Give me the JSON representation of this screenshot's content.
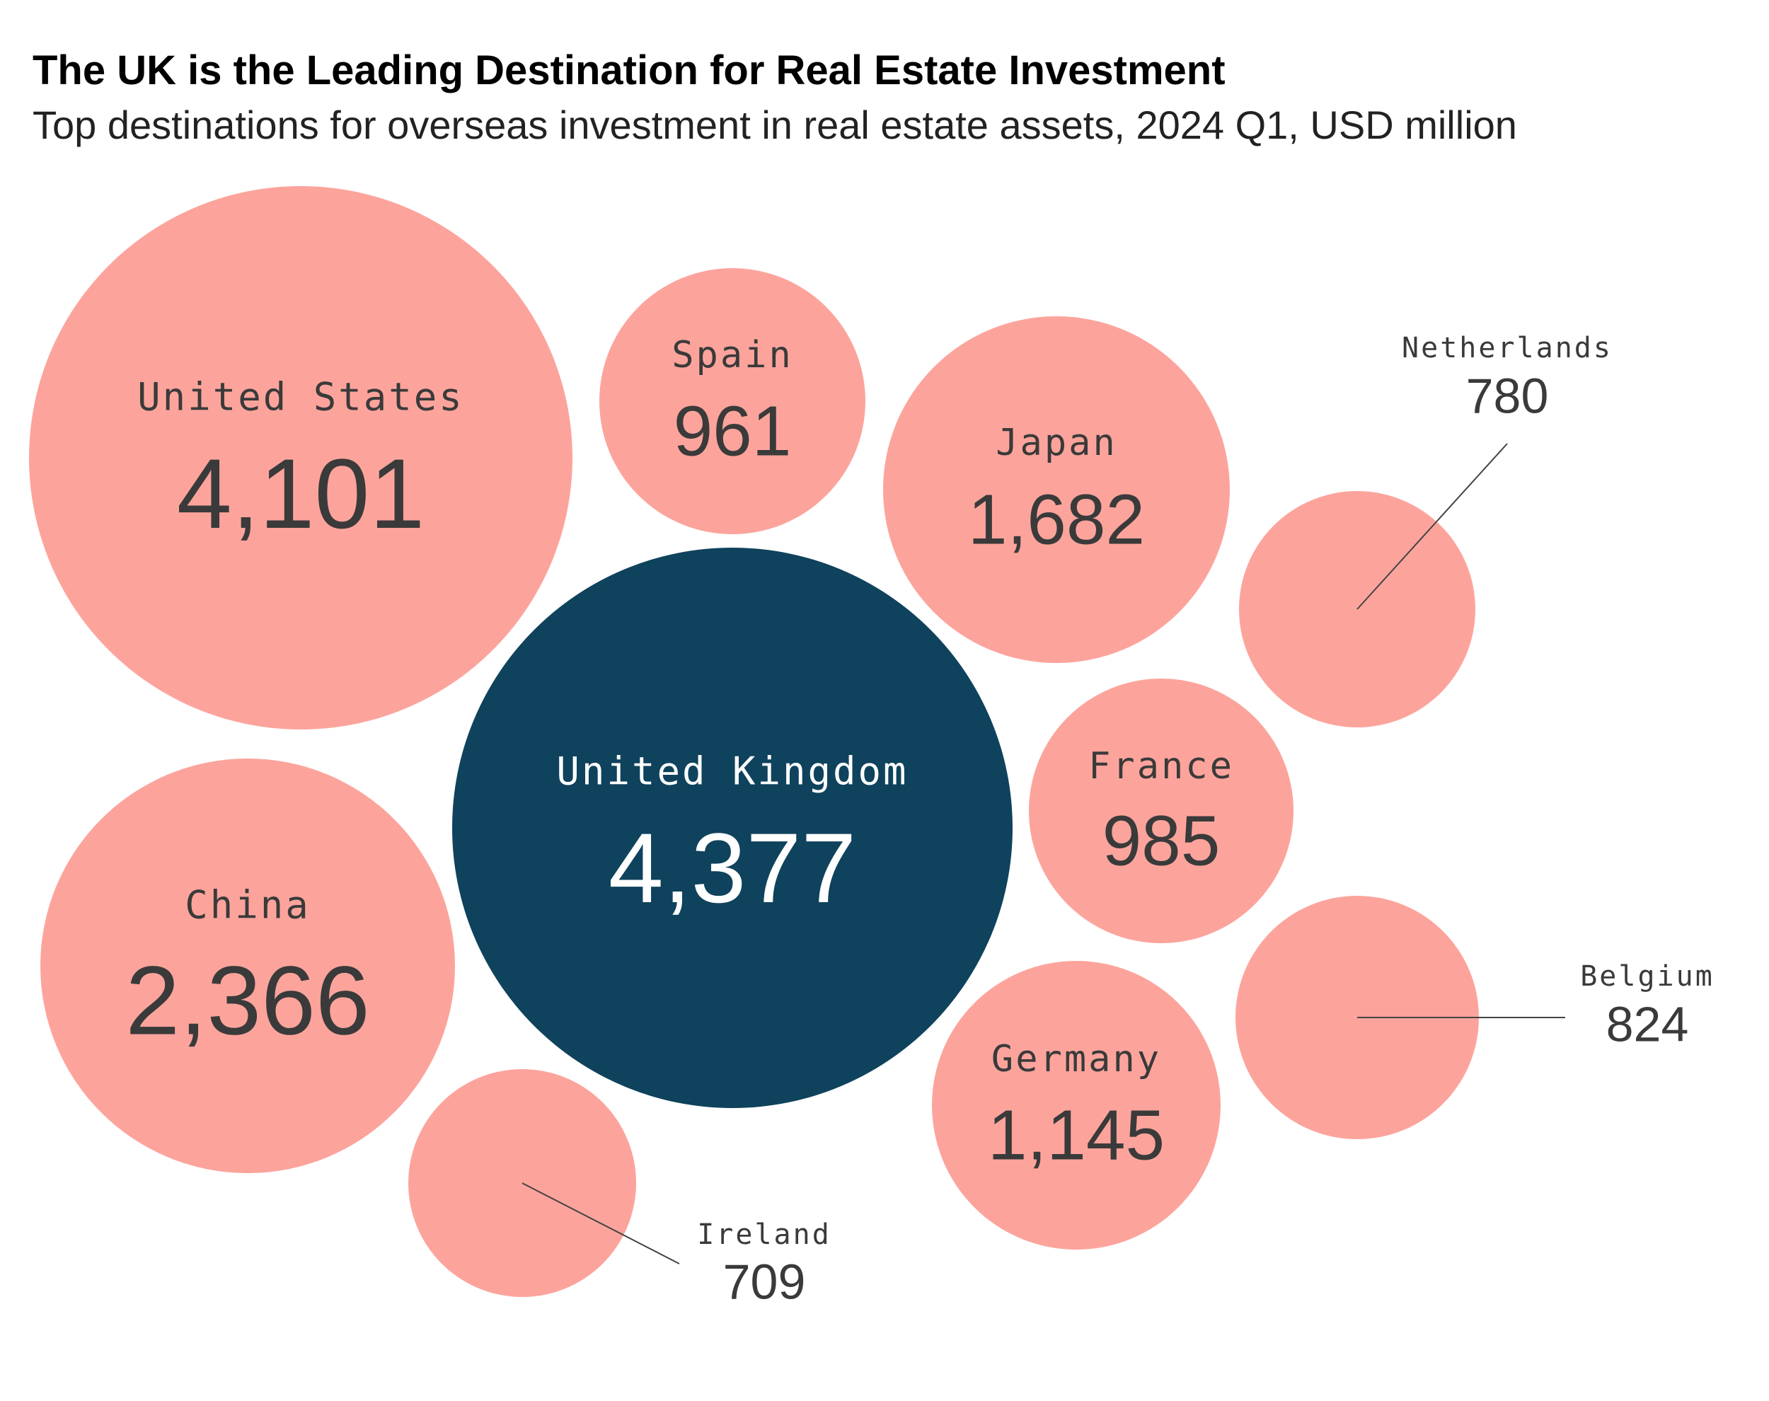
{
  "colors": {
    "highlight": "#0f425c",
    "default": "#fca49c",
    "text": "#3a3a3a"
  },
  "chart_data": {
    "type": "bubble",
    "title": "The UK is the Leading Destination for Real Estate Investment",
    "subtitle": "Top destinations for overseas investment in real estate assets, 2024 Q1, USD million",
    "unit": "USD million",
    "period": "2024 Q1",
    "highlight": "United Kingdom",
    "items": [
      {
        "label": "United Kingdom",
        "value": 4377,
        "display": "4,377"
      },
      {
        "label": "United States",
        "value": 4101,
        "display": "4,101"
      },
      {
        "label": "China",
        "value": 2366,
        "display": "2,366"
      },
      {
        "label": "Japan",
        "value": 1682,
        "display": "1,682"
      },
      {
        "label": "Germany",
        "value": 1145,
        "display": "1,145"
      },
      {
        "label": "France",
        "value": 985,
        "display": "985"
      },
      {
        "label": "Spain",
        "value": 961,
        "display": "961"
      },
      {
        "label": "Belgium",
        "value": 824,
        "display": "824"
      },
      {
        "label": "Netherlands",
        "value": 780,
        "display": "780"
      },
      {
        "label": "Ireland",
        "value": 709,
        "display": "709"
      }
    ]
  }
}
